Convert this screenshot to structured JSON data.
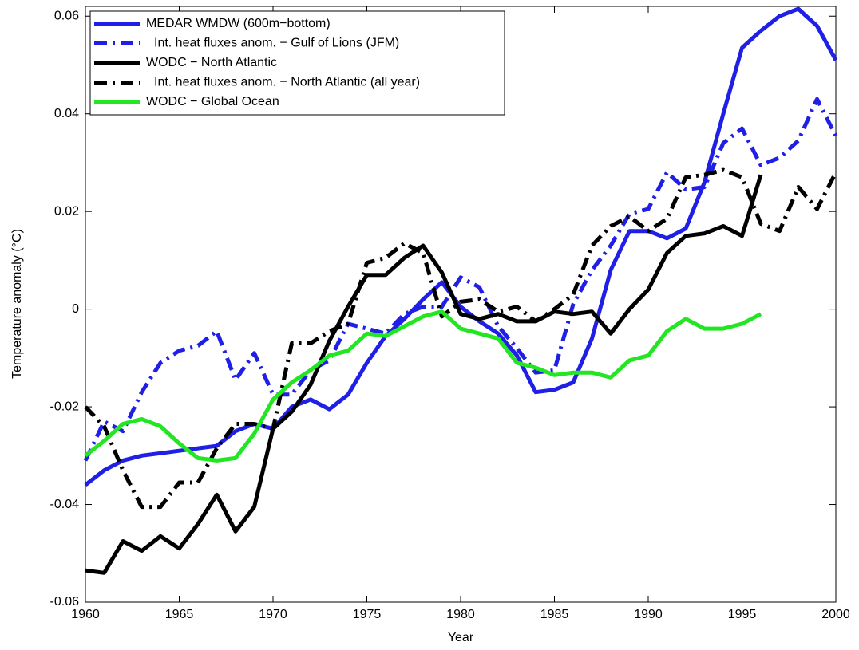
{
  "chart_data": {
    "type": "line",
    "xlabel": "Year",
    "ylabel": "Temperature anomaly (°C)",
    "x": [
      1960,
      1961,
      1962,
      1963,
      1964,
      1965,
      1966,
      1967,
      1968,
      1969,
      1970,
      1971,
      1972,
      1973,
      1974,
      1975,
      1976,
      1977,
      1978,
      1979,
      1980,
      1981,
      1982,
      1983,
      1984,
      1985,
      1986,
      1987,
      1988,
      1989,
      1990,
      1991,
      1992,
      1993,
      1994,
      1995,
      1996,
      1997,
      1998,
      1999,
      2000
    ],
    "xlim": [
      1960,
      2000
    ],
    "xticks": [
      1960,
      1965,
      1970,
      1975,
      1980,
      1985,
      1990,
      1995,
      2000
    ],
    "ylim": [
      -0.06,
      0.062
    ],
    "yticks": [
      -0.06,
      -0.04,
      -0.02,
      0,
      0.02,
      0.04,
      0.06
    ],
    "legend": "upper-left",
    "series": [
      {
        "name": "MEDAR WMDW (600m−bottom)",
        "color": "#1f1fe6",
        "dashed": false,
        "values": [
          -0.036,
          -0.033,
          -0.031,
          -0.03,
          -0.0295,
          -0.029,
          -0.0285,
          -0.028,
          -0.025,
          -0.0235,
          -0.0245,
          -0.02,
          -0.0185,
          -0.0205,
          -0.0175,
          -0.011,
          -0.0055,
          -0.002,
          0.002,
          0.0055,
          0.0005,
          -0.0025,
          -0.005,
          -0.0095,
          -0.017,
          -0.0165,
          -0.015,
          -0.006,
          0.008,
          0.016,
          0.016,
          0.0145,
          0.0165,
          0.026,
          0.04,
          0.0535,
          0.057,
          0.06,
          0.0615,
          0.058,
          0.051
        ]
      },
      {
        "name": "Int. heat fluxes anom. − Gulf of Lions (JFM)",
        "color": "#1f1fe6",
        "dashed": true,
        "values": [
          -0.031,
          -0.023,
          -0.025,
          -0.017,
          -0.011,
          -0.0085,
          -0.0075,
          -0.0045,
          -0.0145,
          -0.009,
          -0.0175,
          -0.0175,
          -0.0125,
          -0.0105,
          -0.003,
          -0.004,
          -0.005,
          -0.001,
          0.0005,
          0.0005,
          0.0065,
          0.0045,
          -0.0035,
          -0.008,
          -0.013,
          -0.0125,
          0.001,
          0.008,
          0.013,
          0.0195,
          0.0205,
          0.028,
          0.0245,
          0.025,
          0.034,
          0.037,
          0.0295,
          0.031,
          0.0345,
          0.043,
          0.0355
        ]
      },
      {
        "name": "WODC − North Atlantic",
        "color": "#000000",
        "dashed": false,
        "values": [
          -0.0535,
          -0.054,
          -0.0475,
          -0.0495,
          -0.0465,
          -0.049,
          -0.044,
          -0.038,
          -0.0455,
          -0.0405,
          -0.0245,
          -0.021,
          -0.0155,
          -0.0065,
          0.0005,
          0.007,
          0.007,
          0.0105,
          0.013,
          0.0075,
          -0.001,
          -0.002,
          -0.001,
          -0.0025,
          -0.0025,
          -0.0005,
          -0.001,
          -0.0005,
          -0.005,
          0,
          0.004,
          0.0115,
          0.015,
          0.0155,
          0.017,
          0.015,
          0.0275,
          null,
          null,
          null,
          null
        ]
      },
      {
        "name": "Int. heat fluxes anom. − North Atlantic (all year)",
        "color": "#000000",
        "dashed": true,
        "values": [
          -0.02,
          -0.024,
          -0.033,
          -0.0405,
          -0.0405,
          -0.0355,
          -0.0355,
          -0.0285,
          -0.0235,
          -0.0235,
          -0.0245,
          -0.007,
          -0.007,
          -0.0045,
          -0.003,
          0.0095,
          0.0105,
          0.0135,
          0.0115,
          -0.0015,
          0.0015,
          0.002,
          -0.0005,
          0.0005,
          -0.0025,
          0,
          0.003,
          0.013,
          0.017,
          0.019,
          0.016,
          0.0185,
          0.027,
          0.0275,
          0.0285,
          0.027,
          0.0175,
          0.016,
          0.025,
          0.0205,
          0.028
        ]
      },
      {
        "name": "WODC − Global Ocean",
        "color": "#22e622",
        "dashed": false,
        "values": [
          -0.03,
          -0.027,
          -0.0235,
          -0.0225,
          -0.024,
          -0.0275,
          -0.0305,
          -0.031,
          -0.0305,
          -0.0255,
          -0.0185,
          -0.015,
          -0.0125,
          -0.0095,
          -0.0085,
          -0.005,
          -0.0055,
          -0.0035,
          -0.0015,
          -0.0005,
          -0.004,
          -0.005,
          -0.006,
          -0.011,
          -0.012,
          -0.0135,
          -0.013,
          -0.013,
          -0.014,
          -0.0105,
          -0.0095,
          -0.0045,
          -0.002,
          -0.004,
          -0.004,
          -0.003,
          -0.001,
          null,
          null,
          null,
          null
        ]
      }
    ]
  }
}
